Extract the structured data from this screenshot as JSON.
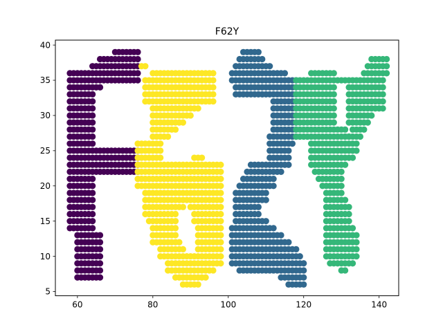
{
  "chart_data": {
    "type": "scatter",
    "title": "F62Y",
    "xlabel": "",
    "ylabel": "",
    "xlim": [
      54.15,
      145.2
    ],
    "ylim": [
      4.4,
      40.7
    ],
    "xticks": [
      60,
      80,
      100,
      120,
      140
    ],
    "yticks": [
      5,
      10,
      15,
      20,
      25,
      30,
      35,
      40
    ],
    "grid": false,
    "legend": "none",
    "series": [
      {
        "color": "#440154",
        "runs": [
          [
            39,
            70,
            76
          ],
          [
            38,
            66,
            76
          ],
          [
            37,
            64,
            76
          ],
          [
            36,
            58,
            76
          ],
          [
            35,
            58,
            76
          ],
          [
            34,
            58,
            66
          ],
          [
            33,
            58,
            64
          ],
          [
            32,
            58,
            64
          ],
          [
            31,
            58,
            64
          ],
          [
            30,
            58,
            64
          ],
          [
            29,
            58,
            64
          ],
          [
            28,
            58,
            64
          ],
          [
            27,
            58,
            64
          ],
          [
            26,
            58,
            64
          ],
          [
            25,
            58,
            76
          ],
          [
            24,
            58,
            76
          ],
          [
            23,
            58,
            76
          ],
          [
            22,
            58,
            76
          ],
          [
            21,
            58,
            64
          ],
          [
            20,
            58,
            64
          ],
          [
            19,
            58,
            64
          ],
          [
            18,
            58,
            64
          ],
          [
            17,
            58,
            64
          ],
          [
            16,
            58,
            64
          ],
          [
            15,
            58,
            64
          ],
          [
            14,
            58,
            64
          ],
          [
            13,
            60,
            66
          ],
          [
            12,
            60,
            66
          ],
          [
            11,
            60,
            66
          ],
          [
            10,
            60,
            66
          ],
          [
            9,
            60,
            66
          ],
          [
            8,
            60,
            66
          ],
          [
            7,
            60,
            66
          ]
        ]
      },
      {
        "color": "#31688e",
        "runs": [
          [
            39,
            104,
            108
          ],
          [
            38,
            103,
            109
          ],
          [
            37,
            102,
            111
          ],
          [
            36,
            101,
            115
          ],
          [
            35,
            101,
            118
          ],
          [
            34,
            102,
            118
          ],
          [
            33,
            102,
            118
          ],
          [
            32,
            112,
            118
          ],
          [
            31,
            112,
            118
          ],
          [
            30,
            112,
            118
          ],
          [
            29,
            112,
            118
          ],
          [
            28,
            112,
            118
          ],
          [
            27,
            111,
            118
          ],
          [
            26,
            111,
            117
          ],
          [
            25,
            111,
            116
          ],
          [
            24,
            111,
            116
          ],
          [
            23,
            106,
            116
          ],
          [
            22,
            105,
            114
          ],
          [
            21,
            104,
            112
          ],
          [
            20,
            103,
            112
          ],
          [
            19,
            102,
            110
          ],
          [
            18,
            102,
            110
          ],
          [
            17,
            102,
            108
          ],
          [
            16,
            102,
            108
          ],
          [
            15,
            102,
            110
          ],
          [
            14,
            101,
            112
          ],
          [
            13,
            101,
            114
          ],
          [
            12,
            101,
            116
          ],
          [
            11,
            101,
            118
          ],
          [
            10,
            101,
            119
          ],
          [
            9,
            101,
            120
          ],
          [
            8,
            103,
            120
          ],
          [
            7,
            114,
            120
          ],
          [
            6,
            116,
            120
          ]
        ]
      },
      {
        "color": "#35b779",
        "runs": [
          [
            38,
            138,
            142
          ],
          [
            37,
            137,
            142
          ],
          [
            36,
            122,
            128
          ],
          [
            36,
            136,
            142
          ],
          [
            35,
            118,
            141
          ],
          [
            34,
            118,
            128
          ],
          [
            34,
            132,
            141
          ],
          [
            33,
            118,
            128
          ],
          [
            33,
            132,
            141
          ],
          [
            32,
            118,
            128
          ],
          [
            32,
            132,
            141
          ],
          [
            31,
            118,
            128
          ],
          [
            31,
            132,
            141
          ],
          [
            30,
            118,
            128
          ],
          [
            30,
            132,
            138
          ],
          [
            29,
            118,
            128
          ],
          [
            29,
            132,
            137
          ],
          [
            28,
            118,
            131
          ],
          [
            28,
            133,
            136
          ],
          [
            27,
            118,
            132
          ],
          [
            27,
            131,
            135
          ],
          [
            26,
            122,
            134
          ],
          [
            25,
            122,
            134
          ],
          [
            24,
            122,
            133
          ],
          [
            23,
            122,
            131
          ],
          [
            22,
            123,
            130
          ],
          [
            21,
            124,
            130
          ],
          [
            20,
            125,
            130
          ],
          [
            19,
            126,
            130
          ],
          [
            18,
            126,
            131
          ],
          [
            17,
            126,
            132
          ],
          [
            16,
            126,
            132
          ],
          [
            15,
            126,
            132
          ],
          [
            14,
            126,
            133
          ],
          [
            13,
            126,
            134
          ],
          [
            12,
            126,
            134
          ],
          [
            11,
            126,
            134
          ],
          [
            10,
            126,
            134
          ],
          [
            9,
            127,
            133
          ],
          [
            8,
            130,
            131
          ]
        ]
      },
      {
        "color": "#fde725",
        "runs": [
          [
            37,
            77,
            78
          ],
          [
            36,
            80,
            96
          ],
          [
            35,
            78,
            96
          ],
          [
            34,
            78,
            96
          ],
          [
            33,
            78,
            96
          ],
          [
            32,
            78,
            96
          ],
          [
            31,
            80,
            92
          ],
          [
            30,
            80,
            90
          ],
          [
            29,
            80,
            88
          ],
          [
            28,
            80,
            86
          ],
          [
            27,
            80,
            84
          ],
          [
            26,
            76,
            82
          ],
          [
            25,
            76,
            82
          ],
          [
            24,
            76,
            82
          ],
          [
            23,
            76,
            98
          ],
          [
            22,
            76,
            98
          ],
          [
            21,
            76,
            98
          ],
          [
            20,
            76,
            98
          ],
          [
            19,
            78,
            98
          ],
          [
            18,
            78,
            98
          ],
          [
            17,
            78,
            88
          ],
          [
            17,
            90,
            98
          ],
          [
            16,
            78,
            86
          ],
          [
            16,
            91,
            98
          ],
          [
            15,
            79,
            86
          ],
          [
            15,
            91,
            98
          ],
          [
            14,
            80,
            86
          ],
          [
            14,
            92,
            98
          ],
          [
            13,
            80,
            86
          ],
          [
            13,
            92,
            98
          ],
          [
            12,
            80,
            87
          ],
          [
            12,
            92,
            98
          ],
          [
            11,
            82,
            88
          ],
          [
            11,
            92,
            98
          ],
          [
            10,
            82,
            98
          ],
          [
            9,
            84,
            98
          ],
          [
            8,
            84,
            96
          ],
          [
            7,
            86,
            94
          ],
          [
            6,
            88,
            92
          ],
          [
            24,
            91,
            93
          ]
        ]
      }
    ]
  }
}
